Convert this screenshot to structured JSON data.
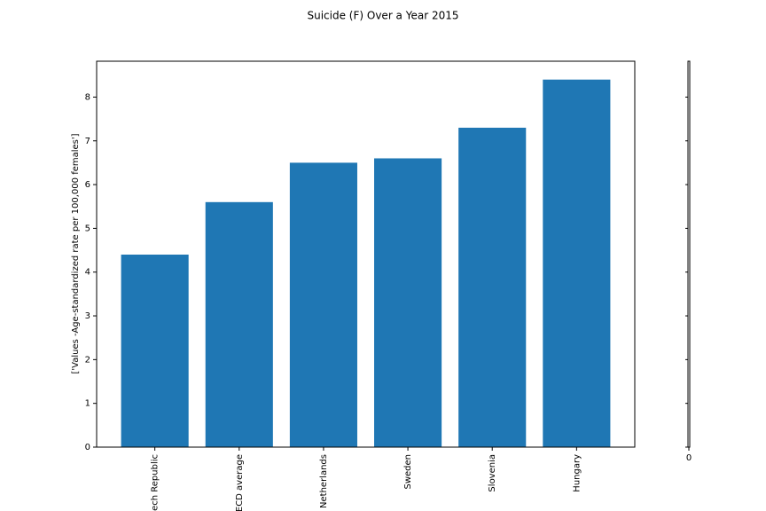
{
  "chart_data": {
    "type": "bar",
    "title": "Suicide (F) Over a Year 2015",
    "ylabel": "['Values -Age-standardized rate per 100,000 females']",
    "categories": [
      "ech Republic",
      "ECD average",
      "Netherlands",
      "Sweden",
      "Slovenia",
      "Hungary"
    ],
    "values": [
      4.4,
      5.6,
      6.5,
      6.6,
      7.3,
      8.4
    ],
    "color": "#1f77b4",
    "ylim": [
      0,
      8.82
    ],
    "yticks": [
      0,
      1,
      2,
      3,
      4,
      5,
      6,
      7,
      8
    ],
    "side_axis_xticks": [
      0
    ]
  }
}
